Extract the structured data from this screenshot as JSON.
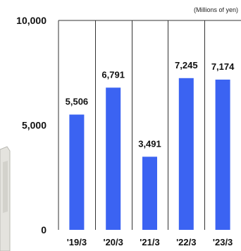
{
  "chart_data": {
    "type": "bar",
    "units_note": "(Millions of yen)",
    "categories": [
      "'19/3",
      "'20/3",
      "'21/3",
      "'22/3",
      "'23/3"
    ],
    "values": [
      5506,
      6791,
      3491,
      7245,
      7174
    ],
    "data_labels": [
      "5,506",
      "6,791",
      "3,491",
      "7,245",
      "7,174"
    ],
    "y_ticks": [
      0,
      5000,
      10000
    ],
    "y_tick_labels": [
      "0",
      "5,000",
      "10,000"
    ],
    "ylim": [
      0,
      10000
    ],
    "grid": "vertical separators between categories",
    "legend": "none",
    "bar_color": "#3b63f2",
    "axis_color": "#333333"
  }
}
